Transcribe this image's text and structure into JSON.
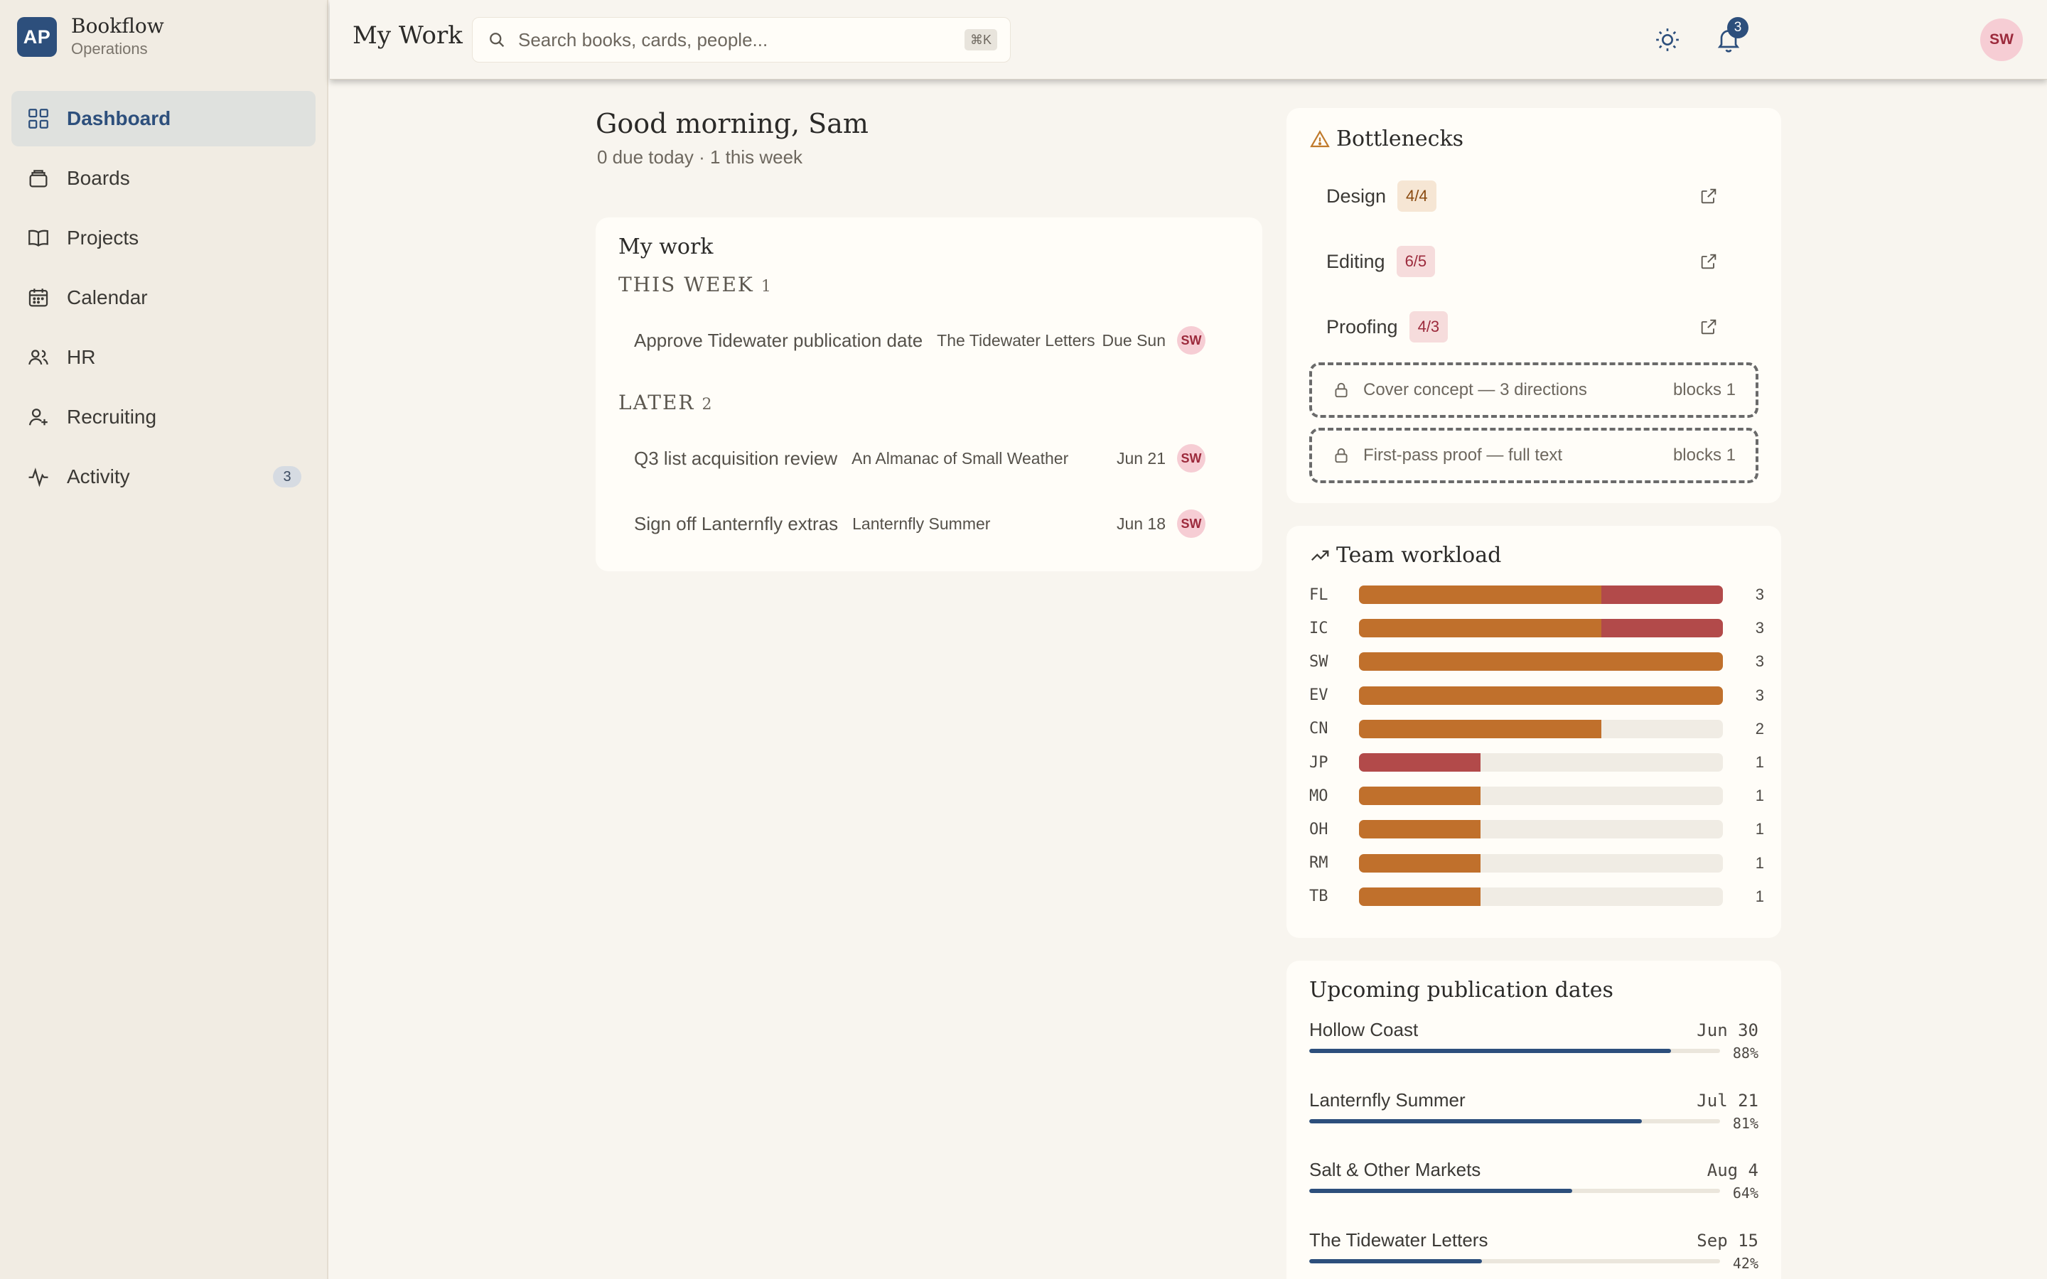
{
  "brand": {
    "logo": "AP",
    "name": "Bookflow",
    "subtitle": "Operations"
  },
  "nav": [
    {
      "label": "Dashboard",
      "icon": "grid-icon",
      "active": true
    },
    {
      "label": "Boards",
      "icon": "layers-icon"
    },
    {
      "label": "Projects",
      "icon": "book-icon"
    },
    {
      "label": "Calendar",
      "icon": "calendar-icon"
    },
    {
      "label": "HR",
      "icon": "people-icon"
    },
    {
      "label": "Recruiting",
      "icon": "user-plus-icon"
    },
    {
      "label": "Activity",
      "icon": "pulse-icon",
      "badge": "3"
    }
  ],
  "header": {
    "title": "My Work",
    "search_placeholder": "Search books, cards, people...",
    "search_shortcut": "⌘K",
    "notification_count": "3",
    "user_initials": "SW"
  },
  "greeting": {
    "title": "Good morning, Sam",
    "subtitle": "0 due today · 1 this week"
  },
  "my_work": {
    "title": "My work",
    "this_week": {
      "label": "THIS WEEK",
      "count": "1",
      "items": [
        {
          "title": "Approve Tidewater publication date",
          "book": "The Tidewater Letters",
          "due": "Due Sun",
          "assignee": "SW"
        }
      ]
    },
    "later": {
      "label": "LATER",
      "count": "2",
      "items": [
        {
          "title": "Q3 list acquisition review",
          "book": "An Almanac of Small Weather",
          "due": "Jun 21",
          "assignee": "SW"
        },
        {
          "title": "Sign off Lanternfly extras",
          "book": "Lanternfly Summer",
          "due": "Jun 18",
          "assignee": "SW"
        }
      ]
    }
  },
  "bottlenecks": {
    "title": "Bottlenecks",
    "stages": [
      {
        "label": "Design",
        "count": "4/4",
        "status": "at-capacity"
      },
      {
        "label": "Editing",
        "count": "6/5",
        "status": "over-capacity"
      },
      {
        "label": "Proofing",
        "count": "4/3",
        "status": "over-capacity"
      }
    ],
    "blockers": [
      {
        "title": "Cover concept — 3 directions",
        "blocks": "blocks 1"
      },
      {
        "title": "First-pass proof — full text",
        "blocks": "blocks 1"
      }
    ]
  },
  "team_workload": {
    "title": "Team workload",
    "max": 3,
    "members": [
      {
        "initials": "FL",
        "normal": 2,
        "overdue": 1,
        "total": "3"
      },
      {
        "initials": "IC",
        "normal": 2,
        "overdue": 1,
        "total": "3"
      },
      {
        "initials": "SW",
        "normal": 3,
        "overdue": 0,
        "total": "3"
      },
      {
        "initials": "EV",
        "normal": 3,
        "overdue": 0,
        "total": "3"
      },
      {
        "initials": "CN",
        "normal": 2,
        "overdue": 0,
        "total": "2"
      },
      {
        "initials": "JP",
        "normal": 0,
        "overdue": 1,
        "total": "1"
      },
      {
        "initials": "MO",
        "normal": 1,
        "overdue": 0,
        "total": "1"
      },
      {
        "initials": "OH",
        "normal": 1,
        "overdue": 0,
        "total": "1"
      },
      {
        "initials": "RM",
        "normal": 1,
        "overdue": 0,
        "total": "1"
      },
      {
        "initials": "TB",
        "normal": 1,
        "overdue": 0,
        "total": "1"
      }
    ]
  },
  "publications": {
    "title": "Upcoming publication dates",
    "items": [
      {
        "name": "Hollow Coast",
        "date": "Jun 30",
        "progress": 0.88,
        "progress_label": "88%"
      },
      {
        "name": "Lanternfly Summer",
        "date": "Jul 21",
        "progress": 0.81,
        "progress_label": "81%"
      },
      {
        "name": "Salt & Other Markets",
        "date": "Aug 4",
        "progress": 0.64,
        "progress_label": "64%"
      },
      {
        "name": "The Tidewater Letters",
        "date": "Sep 15",
        "progress": 0.42,
        "progress_label": "42%"
      }
    ]
  },
  "colors": {
    "accent": "#2d4f7c",
    "workload_normal": "#c0702c",
    "workload_overdue": "#b24a4a",
    "warning": "#c07a2c"
  }
}
